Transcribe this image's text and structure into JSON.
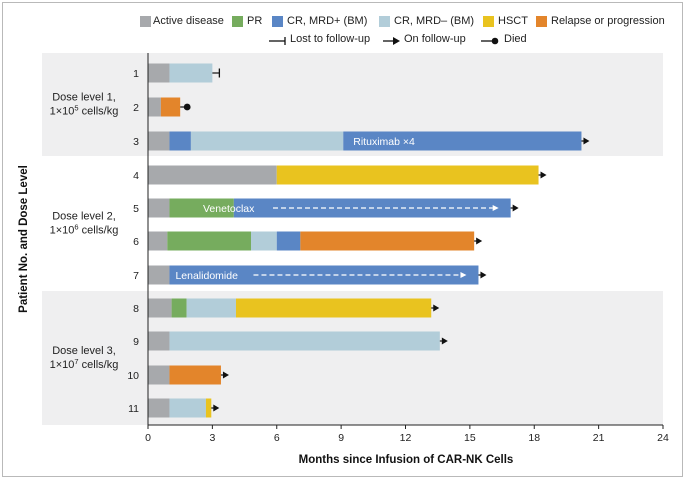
{
  "chart_data": {
    "type": "bar",
    "orientation": "horizontal-stacked-swimmer",
    "xlabel": "Months since Infusion of CAR-NK Cells",
    "ylabel": "Patient No. and Dose Level",
    "xlim": [
      0,
      24
    ],
    "xticks": [
      "0",
      "3",
      "6",
      "9",
      "12",
      "15",
      "18",
      "21",
      "24"
    ],
    "grid": false,
    "legend_placement": "top-right",
    "colors": {
      "active": "#a7a9ac",
      "pr": "#76ac5e",
      "crpos": "#5a86c5",
      "crneg": "#b2cdd9",
      "hsct": "#e9c31f",
      "relapse": "#e3852b",
      "band": "#efeff0"
    },
    "legend": {
      "categories": [
        {
          "key": "active",
          "label": "Active disease"
        },
        {
          "key": "pr",
          "label": "PR"
        },
        {
          "key": "crpos",
          "label": "CR, MRD+ (BM)"
        },
        {
          "key": "crneg",
          "label": "CR, MRD– (BM)"
        },
        {
          "key": "hsct",
          "label": "HSCT"
        },
        {
          "key": "relapse",
          "label": "Relapse or progression"
        }
      ],
      "markers": [
        {
          "key": "lost",
          "label": "Lost to follow-up"
        },
        {
          "key": "on",
          "label": "On follow-up"
        },
        {
          "key": "died",
          "label": "Died"
        }
      ]
    },
    "groups": [
      {
        "line1": "Dose level 1,",
        "line2_base": "1×10",
        "line2_exp": "5",
        "line2_unit": " cells/kg",
        "patients": [
          1,
          2,
          3
        ]
      },
      {
        "line1": "Dose level 2,",
        "line2_base": "1×10",
        "line2_exp": "6",
        "line2_unit": " cells/kg",
        "patients": [
          4,
          5,
          6,
          7
        ]
      },
      {
        "line1": "Dose level 3,",
        "line2_base": "1×10",
        "line2_exp": "7",
        "line2_unit": " cells/kg",
        "patients": [
          8,
          9,
          10,
          11
        ]
      }
    ],
    "patients": [
      {
        "id": "1",
        "end_marker": "lost",
        "segments": [
          {
            "status": "active",
            "start": 0,
            "end": 1.0
          },
          {
            "status": "crneg",
            "start": 1.0,
            "end": 3.0
          }
        ]
      },
      {
        "id": "2",
        "end_marker": "died",
        "segments": [
          {
            "status": "active",
            "start": 0,
            "end": 0.6
          },
          {
            "status": "relapse",
            "start": 0.6,
            "end": 1.5
          }
        ]
      },
      {
        "id": "3",
        "end_marker": "on",
        "annotation": "Rituximab ×4",
        "annotation_arrow": false,
        "segments": [
          {
            "status": "active",
            "start": 0,
            "end": 1.0
          },
          {
            "status": "crpos",
            "start": 1.0,
            "end": 2.0
          },
          {
            "status": "crneg",
            "start": 2.0,
            "end": 9.1
          },
          {
            "status": "crpos",
            "start": 9.1,
            "end": 20.2
          }
        ]
      },
      {
        "id": "4",
        "end_marker": "on",
        "segments": [
          {
            "status": "active",
            "start": 0,
            "end": 6.0
          },
          {
            "status": "hsct",
            "start": 6.0,
            "end": 18.2
          }
        ]
      },
      {
        "id": "5",
        "end_marker": "on",
        "annotation": "Venetoclax",
        "annotation_arrow": true,
        "segments": [
          {
            "status": "active",
            "start": 0,
            "end": 1.0
          },
          {
            "status": "pr",
            "start": 1.0,
            "end": 4.0
          },
          {
            "status": "crpos",
            "start": 4.0,
            "end": 16.9
          }
        ]
      },
      {
        "id": "6",
        "end_marker": "on",
        "segments": [
          {
            "status": "active",
            "start": 0,
            "end": 0.9
          },
          {
            "status": "pr",
            "start": 0.9,
            "end": 4.8
          },
          {
            "status": "crneg",
            "start": 4.8,
            "end": 6.0
          },
          {
            "status": "crpos",
            "start": 6.0,
            "end": 7.1
          },
          {
            "status": "relapse",
            "start": 7.1,
            "end": 15.2
          }
        ]
      },
      {
        "id": "7",
        "end_marker": "on",
        "annotation": "Lenalidomide",
        "annotation_arrow": true,
        "segments": [
          {
            "status": "active",
            "start": 0,
            "end": 1.0
          },
          {
            "status": "crpos",
            "start": 1.0,
            "end": 15.4
          }
        ]
      },
      {
        "id": "8",
        "end_marker": "on",
        "segments": [
          {
            "status": "active",
            "start": 0,
            "end": 1.1
          },
          {
            "status": "pr",
            "start": 1.1,
            "end": 1.8
          },
          {
            "status": "crneg",
            "start": 1.8,
            "end": 4.1
          },
          {
            "status": "hsct",
            "start": 4.1,
            "end": 13.2
          }
        ]
      },
      {
        "id": "9",
        "end_marker": "on",
        "segments": [
          {
            "status": "active",
            "start": 0,
            "end": 1.0
          },
          {
            "status": "crneg",
            "start": 1.0,
            "end": 13.6
          }
        ]
      },
      {
        "id": "10",
        "end_marker": "on",
        "segments": [
          {
            "status": "active",
            "start": 0,
            "end": 1.0
          },
          {
            "status": "relapse",
            "start": 1.0,
            "end": 3.4
          }
        ]
      },
      {
        "id": "11",
        "end_marker": "on",
        "segments": [
          {
            "status": "active",
            "start": 0,
            "end": 1.0
          },
          {
            "status": "crneg",
            "start": 1.0,
            "end": 2.7
          },
          {
            "status": "hsct",
            "start": 2.7,
            "end": 2.95
          }
        ]
      }
    ]
  }
}
